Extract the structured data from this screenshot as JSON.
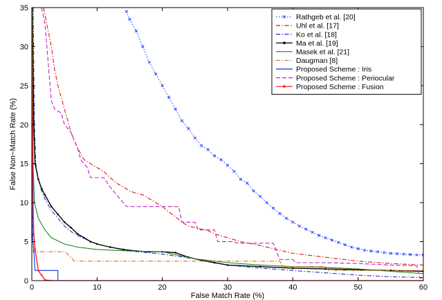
{
  "chart_data": {
    "type": "line",
    "title": "",
    "xlabel": "False Match Rate (%)",
    "ylabel": "False Non−Match Rate (%)",
    "xlim": [
      0,
      60
    ],
    "ylim": [
      0,
      35
    ],
    "xticks": [
      0,
      10,
      20,
      30,
      40,
      50,
      60
    ],
    "yticks": [
      0,
      5,
      10,
      15,
      20,
      25,
      30,
      35
    ],
    "grid": false,
    "legend_position": "top-right",
    "series": [
      {
        "name": "Rathgeb et al. [20]",
        "color": "#2040ff",
        "dash": "dotted",
        "marker": "x",
        "points": [
          [
            14.5,
            34.5
          ],
          [
            15,
            33.5
          ],
          [
            16,
            32
          ],
          [
            17,
            30
          ],
          [
            18,
            28
          ],
          [
            19,
            26.5
          ],
          [
            20,
            25
          ],
          [
            21,
            23.5
          ],
          [
            22,
            22
          ],
          [
            23,
            20.5
          ],
          [
            24,
            19.5
          ],
          [
            25,
            18.3
          ],
          [
            26,
            17.3
          ],
          [
            27,
            16.8
          ],
          [
            28,
            16
          ],
          [
            29,
            15.5
          ],
          [
            30,
            14.8
          ],
          [
            31,
            14
          ],
          [
            32,
            13
          ],
          [
            33,
            12.5
          ],
          [
            34,
            11.5
          ],
          [
            35,
            10.8
          ],
          [
            36,
            10
          ],
          [
            37,
            9.3
          ],
          [
            38,
            8.6
          ],
          [
            39,
            8
          ],
          [
            40,
            7.5
          ],
          [
            41,
            7
          ],
          [
            42,
            6.6
          ],
          [
            43,
            6.2
          ],
          [
            44,
            5.8
          ],
          [
            45,
            5.5
          ],
          [
            46,
            5.2
          ],
          [
            47,
            4.9
          ],
          [
            48,
            4.6
          ],
          [
            49,
            4.3
          ],
          [
            50,
            4.1
          ],
          [
            51,
            3.9
          ],
          [
            52,
            3.8
          ],
          [
            53,
            3.7
          ],
          [
            54,
            3.6
          ],
          [
            55,
            3.5
          ],
          [
            56,
            3.45
          ],
          [
            57,
            3.4
          ],
          [
            58,
            3.35
          ],
          [
            59,
            3.3
          ],
          [
            60,
            3.3
          ]
        ]
      },
      {
        "name": "Uhl et al. [17]",
        "color": "#e01010",
        "dash": "dashdot",
        "marker": "none",
        "points": [
          [
            1.8,
            35
          ],
          [
            2.5,
            32
          ],
          [
            3,
            30
          ],
          [
            3.5,
            27
          ],
          [
            4,
            25
          ],
          [
            5,
            22
          ],
          [
            6,
            19
          ],
          [
            7,
            17
          ],
          [
            8,
            15.5
          ],
          [
            9,
            15
          ],
          [
            10,
            14.5
          ],
          [
            11,
            14
          ],
          [
            12,
            13.2
          ],
          [
            13,
            12.5
          ],
          [
            14,
            12
          ],
          [
            15,
            11.5
          ],
          [
            16,
            11.2
          ],
          [
            17,
            11
          ],
          [
            18,
            10.5
          ],
          [
            19,
            10
          ],
          [
            20,
            9.5
          ],
          [
            21,
            8.8
          ],
          [
            22,
            8.2
          ],
          [
            23,
            7.5
          ],
          [
            24,
            7
          ],
          [
            25,
            6.8
          ],
          [
            26,
            6.6
          ],
          [
            27,
            6.4
          ],
          [
            28,
            6
          ],
          [
            30,
            5.5
          ],
          [
            32,
            5
          ],
          [
            35,
            4.5
          ],
          [
            40,
            3.5
          ],
          [
            45,
            3
          ],
          [
            50,
            2.5
          ],
          [
            55,
            2.2
          ],
          [
            60,
            2
          ]
        ]
      },
      {
        "name": "Ko et al. [18]",
        "color": "#2030c0",
        "dash": "dashdot",
        "marker": "none",
        "points": [
          [
            0.2,
            35
          ],
          [
            0.4,
            20
          ],
          [
            0.6,
            15
          ],
          [
            1,
            13
          ],
          [
            1.5,
            11.5
          ],
          [
            2,
            10.5
          ],
          [
            3,
            9
          ],
          [
            4,
            8
          ],
          [
            5,
            7
          ],
          [
            6,
            6.3
          ],
          [
            7,
            5.8
          ],
          [
            8,
            5.4
          ],
          [
            10,
            4.7
          ],
          [
            12,
            4.3
          ],
          [
            15,
            3.8
          ],
          [
            20,
            3.4
          ],
          [
            25,
            2.8
          ],
          [
            30,
            2
          ],
          [
            35,
            1.6
          ],
          [
            40,
            1.3
          ],
          [
            45,
            1
          ],
          [
            50,
            0.7
          ],
          [
            55,
            0.5
          ],
          [
            60,
            0.4
          ]
        ]
      },
      {
        "name": "Ma et al. [19]",
        "color": "#000000",
        "dash": "solid",
        "marker": "dot",
        "points": [
          [
            0.1,
            35
          ],
          [
            0.3,
            20
          ],
          [
            0.5,
            15
          ],
          [
            1,
            13
          ],
          [
            1.5,
            11.8
          ],
          [
            2,
            11
          ],
          [
            3,
            9.5
          ],
          [
            4,
            8.5
          ],
          [
            5,
            7.5
          ],
          [
            6,
            6.8
          ],
          [
            7,
            6
          ],
          [
            8,
            5.5
          ],
          [
            9,
            5
          ],
          [
            10,
            4.7
          ],
          [
            12,
            4.3
          ],
          [
            14,
            4
          ],
          [
            16,
            3.8
          ],
          [
            18,
            3.7
          ],
          [
            20,
            3.7
          ],
          [
            22,
            3.6
          ],
          [
            24,
            3
          ],
          [
            26,
            2.6
          ],
          [
            28,
            2.3
          ],
          [
            30,
            2
          ],
          [
            35,
            1.8
          ],
          [
            40,
            1.6
          ],
          [
            45,
            1.5
          ],
          [
            50,
            1.4
          ],
          [
            55,
            1.3
          ],
          [
            60,
            1.2
          ]
        ]
      },
      {
        "name": "Masek et al. [21]",
        "color": "#208020",
        "dash": "solid",
        "marker": "none",
        "points": [
          [
            0.1,
            35
          ],
          [
            0.2,
            15
          ],
          [
            0.4,
            10
          ],
          [
            1,
            8
          ],
          [
            2,
            6.5
          ],
          [
            3,
            5.5
          ],
          [
            5,
            4.7
          ],
          [
            7,
            4.3
          ],
          [
            10,
            4
          ],
          [
            15,
            3.8
          ],
          [
            20,
            3.7
          ],
          [
            25,
            2.8
          ],
          [
            30,
            2.3
          ],
          [
            35,
            2
          ],
          [
            40,
            1.8
          ],
          [
            45,
            1.7
          ],
          [
            50,
            1.5
          ],
          [
            55,
            1.2
          ],
          [
            60,
            0.9
          ]
        ]
      },
      {
        "name": "Daugman [8]",
        "color": "#d07020",
        "dash": "dashdot",
        "marker": "none",
        "points": [
          [
            0.1,
            15
          ],
          [
            0.2,
            3.7
          ],
          [
            5,
            3.7
          ],
          [
            5.5,
            3.4
          ],
          [
            6.5,
            2.5
          ],
          [
            25,
            2.5
          ],
          [
            38,
            2.5
          ],
          [
            38.5,
            1.8
          ],
          [
            45,
            1.8
          ],
          [
            45.5,
            1.3
          ],
          [
            60,
            1.3
          ]
        ]
      },
      {
        "name": "Proposed Scheme : Iris",
        "color": "#1030f0",
        "dash": "solid",
        "marker": "none",
        "points": [
          [
            0,
            35
          ],
          [
            0.05,
            12
          ],
          [
            0.1,
            5.5
          ],
          [
            0.3,
            4
          ],
          [
            0.5,
            1.3
          ],
          [
            4,
            1.3
          ],
          [
            4,
            0
          ],
          [
            60,
            0
          ]
        ]
      },
      {
        "name": "Proposed Scheme : Periocular",
        "color": "#c020c0",
        "dash": "dashed",
        "marker": "none",
        "points": [
          [
            1.5,
            35
          ],
          [
            2,
            33
          ],
          [
            2.5,
            28
          ],
          [
            3,
            23
          ],
          [
            3.5,
            22
          ],
          [
            4.5,
            21.5
          ],
          [
            5,
            20
          ],
          [
            6,
            19
          ],
          [
            7,
            17
          ],
          [
            7.5,
            15.5
          ],
          [
            8.5,
            14.5
          ],
          [
            9,
            13.2
          ],
          [
            11,
            13.2
          ],
          [
            12,
            12
          ],
          [
            13,
            11
          ],
          [
            14,
            10
          ],
          [
            14.5,
            9.5
          ],
          [
            17,
            9.5
          ],
          [
            22.5,
            9.5
          ],
          [
            23,
            7.5
          ],
          [
            25,
            7.5
          ],
          [
            25.5,
            6.5
          ],
          [
            28,
            6.5
          ],
          [
            28.5,
            5
          ],
          [
            31,
            5
          ],
          [
            31.5,
            4.8
          ],
          [
            37,
            4.8
          ],
          [
            37.5,
            3.7
          ],
          [
            38,
            2.7
          ],
          [
            40,
            2.7
          ],
          [
            40.5,
            2.3
          ],
          [
            45,
            2.3
          ],
          [
            50,
            2.2
          ],
          [
            55,
            2
          ],
          [
            59,
            1.9
          ],
          [
            59.5,
            0.3
          ],
          [
            60,
            0.3
          ]
        ]
      },
      {
        "name": "Proposed Scheme : Fusion",
        "color": "#ff2020",
        "dash": "solid",
        "marker": "dot",
        "points": [
          [
            0,
            35
          ],
          [
            0.1,
            20
          ],
          [
            0.2,
            10
          ],
          [
            0.3,
            6
          ],
          [
            0.5,
            4
          ],
          [
            1,
            1.3
          ],
          [
            1.5,
            0.7
          ],
          [
            2,
            0.1
          ],
          [
            3,
            0
          ],
          [
            10,
            0
          ],
          [
            20,
            0
          ],
          [
            30,
            0
          ],
          [
            40,
            0
          ],
          [
            50,
            0
          ],
          [
            60,
            0
          ]
        ]
      }
    ]
  }
}
